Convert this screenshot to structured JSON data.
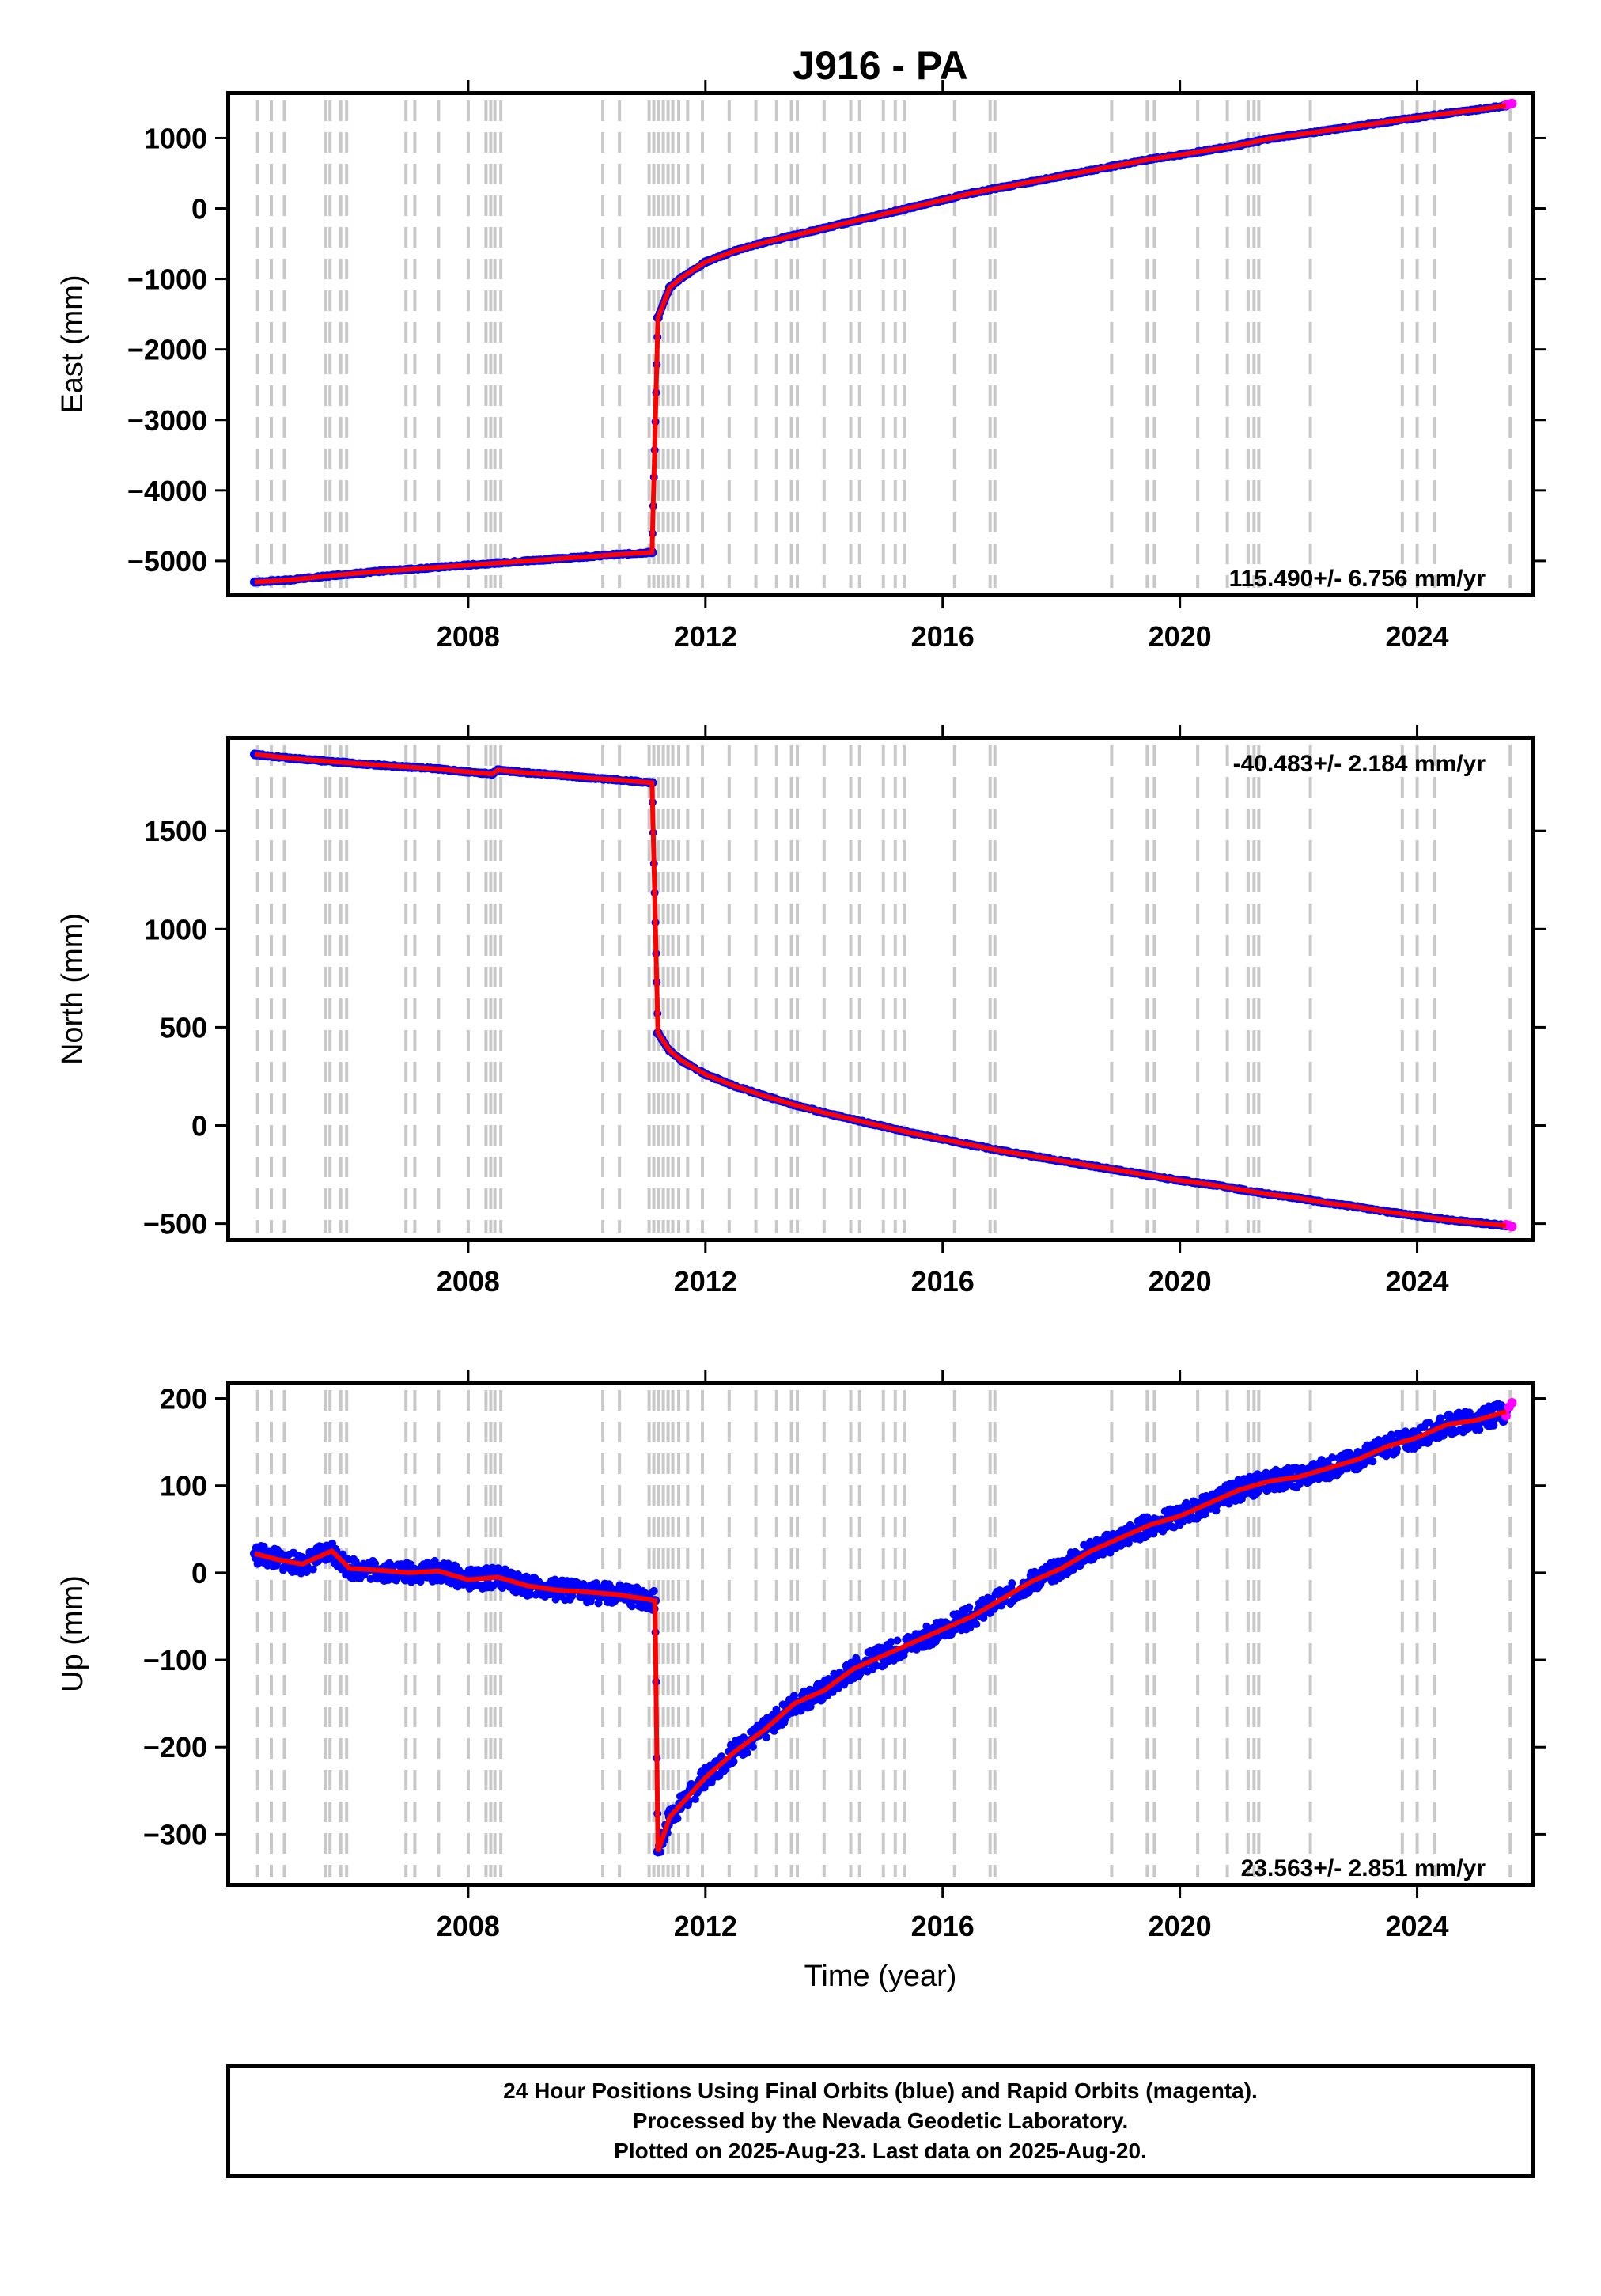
{
  "title": "J916 - PA",
  "colors": {
    "final_orbits": "#0000ff",
    "rapid_orbits": "#ff00ff",
    "model_line": "#ff0000",
    "equipment_change_lines": "#c8c8c8"
  },
  "footer": {
    "line1": "24 Hour Positions Using Final Orbits (blue) and Rapid Orbits (magenta).",
    "line2": "Processed by the Nevada Geodetic Laboratory.",
    "line3": "Plotted on 2025-Aug-23. Last data on 2025-Aug-20."
  },
  "chart_data": [
    {
      "type": "scatter",
      "panel": "east",
      "ylabel": "East (mm)",
      "xlabel": "",
      "xlim": [
        2004.0,
        2025.9
      ],
      "ylim": [
        -5450,
        1600
      ],
      "x_ticks": [
        2008,
        2012,
        2016,
        2020,
        2024
      ],
      "y_ticks": [
        -5000,
        -4000,
        -3000,
        -2000,
        -1000,
        0,
        1000
      ],
      "y_tick_labels": [
        "−5000",
        "−4000",
        "−3000",
        "−2000",
        "−1000",
        "0",
        "1000"
      ],
      "rate_label": "115.490+/- 6.756 mm/yr",
      "rate_position": "bottom-right",
      "series": [
        {
          "x": [
            2004.4,
            2005.0,
            2005.8,
            2006.5,
            2007.0,
            2007.5,
            2008.0,
            2008.5,
            2009.0,
            2009.5,
            2010.0,
            2010.5,
            2011.1,
            2011.2,
            2011.4,
            2011.6,
            2012.0,
            2012.5,
            2013.0,
            2013.5,
            2014.0,
            2014.5,
            2015.0,
            2015.5,
            2016.0,
            2016.5,
            2017.0,
            2017.5,
            2018.0,
            2018.5,
            2019.0,
            2019.5,
            2020.0,
            2020.5,
            2021.0,
            2021.5,
            2022.0,
            2022.5,
            2023.0,
            2023.5,
            2024.0,
            2024.5,
            2025.0,
            2025.5
          ],
          "y": [
            -5300,
            -5270,
            -5200,
            -5150,
            -5120,
            -5090,
            -5060,
            -5030,
            -5000,
            -4970,
            -4940,
            -4910,
            -4880,
            -1550,
            -1120,
            -980,
            -760,
            -600,
            -480,
            -380,
            -280,
            -180,
            -80,
            20,
            120,
            220,
            300,
            380,
            460,
            540,
            620,
            700,
            760,
            830,
            900,
            990,
            1050,
            1110,
            1170,
            1230,
            1290,
            1350,
            1400,
            1460
          ]
        },
        {
          "name": "Rapid Orbits",
          "x": [
            2025.5,
            2025.55,
            2025.6
          ],
          "y": [
            1470,
            1480,
            1490
          ]
        }
      ]
    },
    {
      "type": "scatter",
      "panel": "north",
      "ylabel": "North (mm)",
      "xlabel": "",
      "xlim": [
        2004.0,
        2025.9
      ],
      "ylim": [
        -570,
        1960
      ],
      "x_ticks": [
        2008,
        2012,
        2016,
        2020,
        2024
      ],
      "y_ticks": [
        -500,
        0,
        500,
        1000,
        1500
      ],
      "y_tick_labels": [
        "−500",
        "0",
        "500",
        "1000",
        "1500"
      ],
      "rate_label": "-40.483+/- 2.184 mm/yr",
      "rate_position": "top-right",
      "series": [
        {
          "x": [
            2004.4,
            2005.0,
            2005.8,
            2006.5,
            2007.0,
            2007.5,
            2008.0,
            2008.4,
            2008.5,
            2009.0,
            2009.5,
            2010.0,
            2010.5,
            2011.1,
            2011.2,
            2011.4,
            2011.6,
            2012.0,
            2012.5,
            2013.0,
            2013.5,
            2014.0,
            2014.5,
            2015.0,
            2015.5,
            2016.0,
            2016.5,
            2017.0,
            2017.5,
            2018.0,
            2018.5,
            2019.0,
            2019.5,
            2020.0,
            2020.5,
            2021.0,
            2021.5,
            2022.0,
            2022.5,
            2023.0,
            2023.5,
            2024.0,
            2024.5,
            2025.0,
            2025.5
          ],
          "y": [
            1890,
            1870,
            1850,
            1835,
            1825,
            1815,
            1800,
            1790,
            1810,
            1795,
            1785,
            1770,
            1760,
            1745,
            470,
            380,
            330,
            260,
            200,
            150,
            105,
            65,
            30,
            -5,
            -40,
            -70,
            -100,
            -130,
            -155,
            -180,
            -205,
            -230,
            -255,
            -280,
            -300,
            -325,
            -350,
            -370,
            -395,
            -415,
            -440,
            -460,
            -480,
            -495,
            -510
          ]
        },
        {
          "name": "Rapid Orbits",
          "x": [
            2025.5,
            2025.55,
            2025.6
          ],
          "y": [
            -505,
            -510,
            -515
          ]
        }
      ]
    },
    {
      "type": "scatter",
      "panel": "up",
      "ylabel": "Up (mm)",
      "xlabel": "Time (year)",
      "xlim": [
        2004.0,
        2025.9
      ],
      "ylim": [
        -355,
        215
      ],
      "x_ticks": [
        2008,
        2012,
        2016,
        2020,
        2024
      ],
      "y_ticks": [
        -300,
        -200,
        -100,
        0,
        100,
        200
      ],
      "y_tick_labels": [
        "−300",
        "−200",
        "−100",
        "0",
        "100",
        "200"
      ],
      "rate_label": "23.563+/- 2.851 mm/yr",
      "rate_position": "bottom-right",
      "series": [
        {
          "x": [
            2004.4,
            2004.8,
            2005.2,
            2005.7,
            2006.0,
            2006.5,
            2007.0,
            2007.5,
            2008.0,
            2008.5,
            2009.0,
            2009.5,
            2010.0,
            2010.5,
            2011.0,
            2011.15,
            2011.2,
            2011.4,
            2011.6,
            2012.0,
            2012.5,
            2013.0,
            2013.5,
            2014.0,
            2014.5,
            2015.0,
            2015.5,
            2016.0,
            2016.5,
            2017.0,
            2017.5,
            2018.0,
            2018.5,
            2019.0,
            2019.5,
            2020.0,
            2020.5,
            2021.0,
            2021.5,
            2022.0,
            2022.5,
            2023.0,
            2023.5,
            2024.0,
            2024.5,
            2025.0,
            2025.5
          ],
          "y": [
            22,
            15,
            10,
            25,
            5,
            3,
            0,
            2,
            -8,
            -5,
            -15,
            -20,
            -22,
            -25,
            -30,
            -32,
            -320,
            -280,
            -265,
            -235,
            -205,
            -180,
            -150,
            -135,
            -110,
            -95,
            -80,
            -65,
            -50,
            -30,
            -10,
            5,
            25,
            40,
            55,
            65,
            80,
            95,
            105,
            110,
            120,
            130,
            145,
            155,
            170,
            175,
            185
          ]
        },
        {
          "name": "Rapid Orbits",
          "x": [
            2025.5,
            2025.55,
            2025.6
          ],
          "y": [
            180,
            190,
            195
          ]
        }
      ]
    }
  ],
  "equipment_change_years": [
    2004.45,
    2004.68,
    2004.9,
    2005.6,
    2005.67,
    2005.85,
    2005.95,
    2006.95,
    2007.1,
    2007.5,
    2008.0,
    2008.3,
    2008.38,
    2008.45,
    2008.55,
    2010.27,
    2010.55,
    2011.05,
    2011.13,
    2011.21,
    2011.29,
    2011.37,
    2011.45,
    2011.55,
    2011.7,
    2011.95,
    2012.4,
    2012.85,
    2013.2,
    2013.45,
    2013.55,
    2014.0,
    2014.45,
    2014.6,
    2015.0,
    2015.2,
    2015.35,
    2016.2,
    2016.8,
    2016.88,
    2018.85,
    2019.45,
    2019.57,
    2020.3,
    2020.8,
    2021.15,
    2021.25,
    2021.33,
    2022.2,
    2023.75,
    2024.0,
    2024.3,
    2025.57
  ]
}
